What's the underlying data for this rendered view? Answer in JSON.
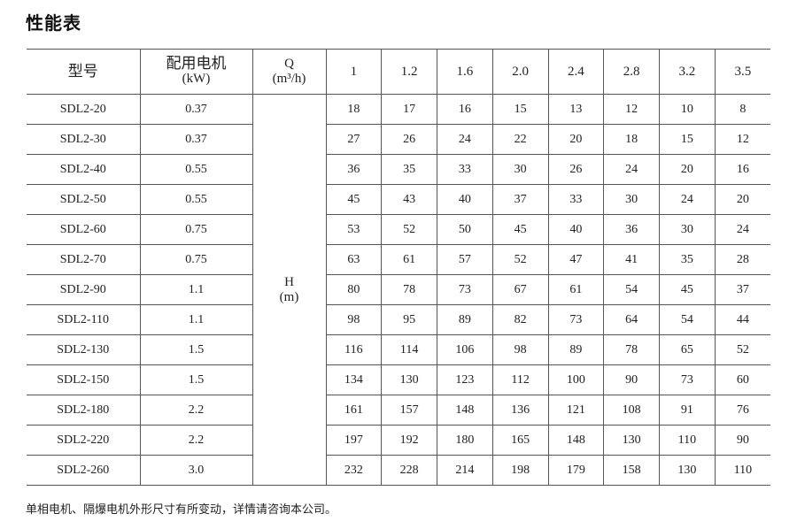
{
  "title": "性能表",
  "header": {
    "model": "型号",
    "motor_line1": "配用电机",
    "motor_line2": "(kW)",
    "q_line1": "Q",
    "q_line2": "(m³/h)",
    "flows": [
      "1",
      "1.2",
      "1.6",
      "2.0",
      "2.4",
      "2.8",
      "3.2",
      "3.5"
    ]
  },
  "h_label_line1": "H",
  "h_label_line2": "(m)",
  "rows": [
    {
      "model": "SDL2-20",
      "power": "0.37",
      "heads": [
        "18",
        "17",
        "16",
        "15",
        "13",
        "12",
        "10",
        "8"
      ]
    },
    {
      "model": "SDL2-30",
      "power": "0.37",
      "heads": [
        "27",
        "26",
        "24",
        "22",
        "20",
        "18",
        "15",
        "12"
      ]
    },
    {
      "model": "SDL2-40",
      "power": "0.55",
      "heads": [
        "36",
        "35",
        "33",
        "30",
        "26",
        "24",
        "20",
        "16"
      ]
    },
    {
      "model": "SDL2-50",
      "power": "0.55",
      "heads": [
        "45",
        "43",
        "40",
        "37",
        "33",
        "30",
        "24",
        "20"
      ]
    },
    {
      "model": "SDL2-60",
      "power": "0.75",
      "heads": [
        "53",
        "52",
        "50",
        "45",
        "40",
        "36",
        "30",
        "24"
      ]
    },
    {
      "model": "SDL2-70",
      "power": "0.75",
      "heads": [
        "63",
        "61",
        "57",
        "52",
        "47",
        "41",
        "35",
        "28"
      ]
    },
    {
      "model": "SDL2-90",
      "power": "1.1",
      "heads": [
        "80",
        "78",
        "73",
        "67",
        "61",
        "54",
        "45",
        "37"
      ]
    },
    {
      "model": "SDL2-110",
      "power": "1.1",
      "heads": [
        "98",
        "95",
        "89",
        "82",
        "73",
        "64",
        "54",
        "44"
      ]
    },
    {
      "model": "SDL2-130",
      "power": "1.5",
      "heads": [
        "116",
        "114",
        "106",
        "98",
        "89",
        "78",
        "65",
        "52"
      ]
    },
    {
      "model": "SDL2-150",
      "power": "1.5",
      "heads": [
        "134",
        "130",
        "123",
        "112",
        "100",
        "90",
        "73",
        "60"
      ]
    },
    {
      "model": "SDL2-180",
      "power": "2.2",
      "heads": [
        "161",
        "157",
        "148",
        "136",
        "121",
        "108",
        "91",
        "76"
      ]
    },
    {
      "model": "SDL2-220",
      "power": "2.2",
      "heads": [
        "197",
        "192",
        "180",
        "165",
        "148",
        "130",
        "110",
        "90"
      ]
    },
    {
      "model": "SDL2-260",
      "power": "3.0",
      "heads": [
        "232",
        "228",
        "214",
        "198",
        "179",
        "158",
        "130",
        "110"
      ]
    }
  ],
  "footer": "单相电机、隔爆电机外形尺寸有所变动，详情请咨询本公司。"
}
